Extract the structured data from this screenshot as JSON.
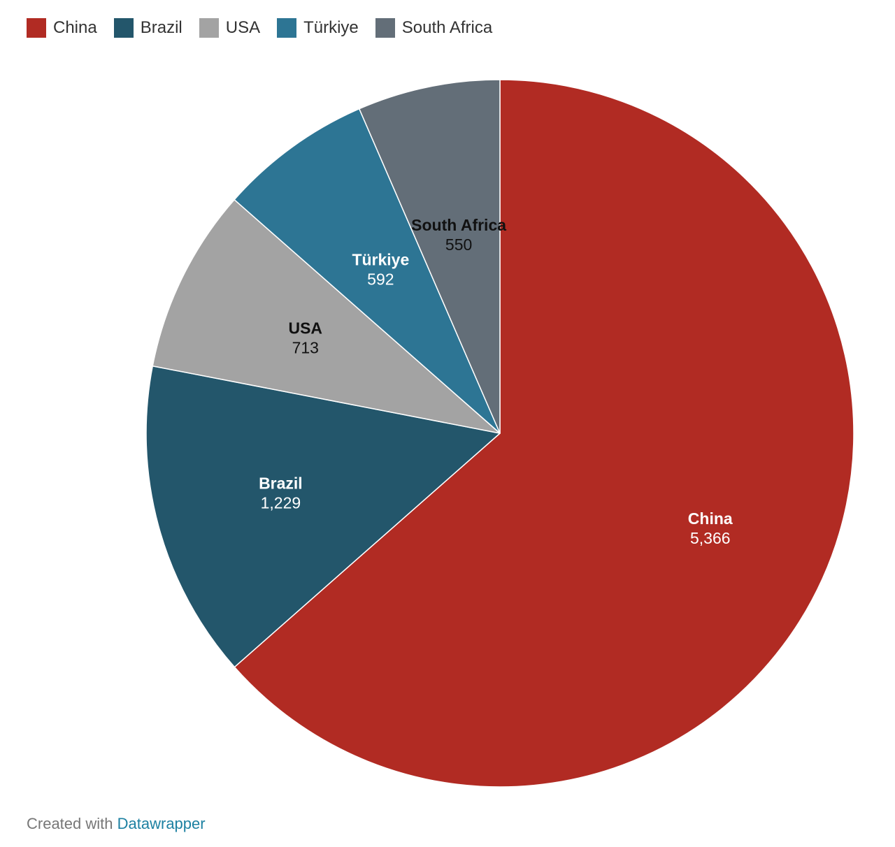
{
  "chart_data": {
    "type": "pie",
    "title": "",
    "categories": [
      "China",
      "Brazil",
      "USA",
      "Türkiye",
      "South Africa"
    ],
    "values": [
      5366,
      1229,
      713,
      592,
      550
    ],
    "value_labels": [
      "5,366",
      "1,229",
      "713",
      "592",
      "550"
    ],
    "colors": [
      "#b12b23",
      "#23566b",
      "#a3a3a3",
      "#2d7594",
      "#636e78"
    ],
    "label_colors": [
      "#ffffff",
      "#ffffff",
      "#111111",
      "#ffffff",
      "#111111"
    ],
    "start_angle": "12 o'clock",
    "direction": "clockwise",
    "legend": {
      "position": "top-left",
      "entries": [
        "China",
        "Brazil",
        "USA",
        "Türkiye",
        "South Africa"
      ]
    }
  },
  "footer": {
    "prefix": "Created with",
    "link_text": "Datawrapper"
  }
}
